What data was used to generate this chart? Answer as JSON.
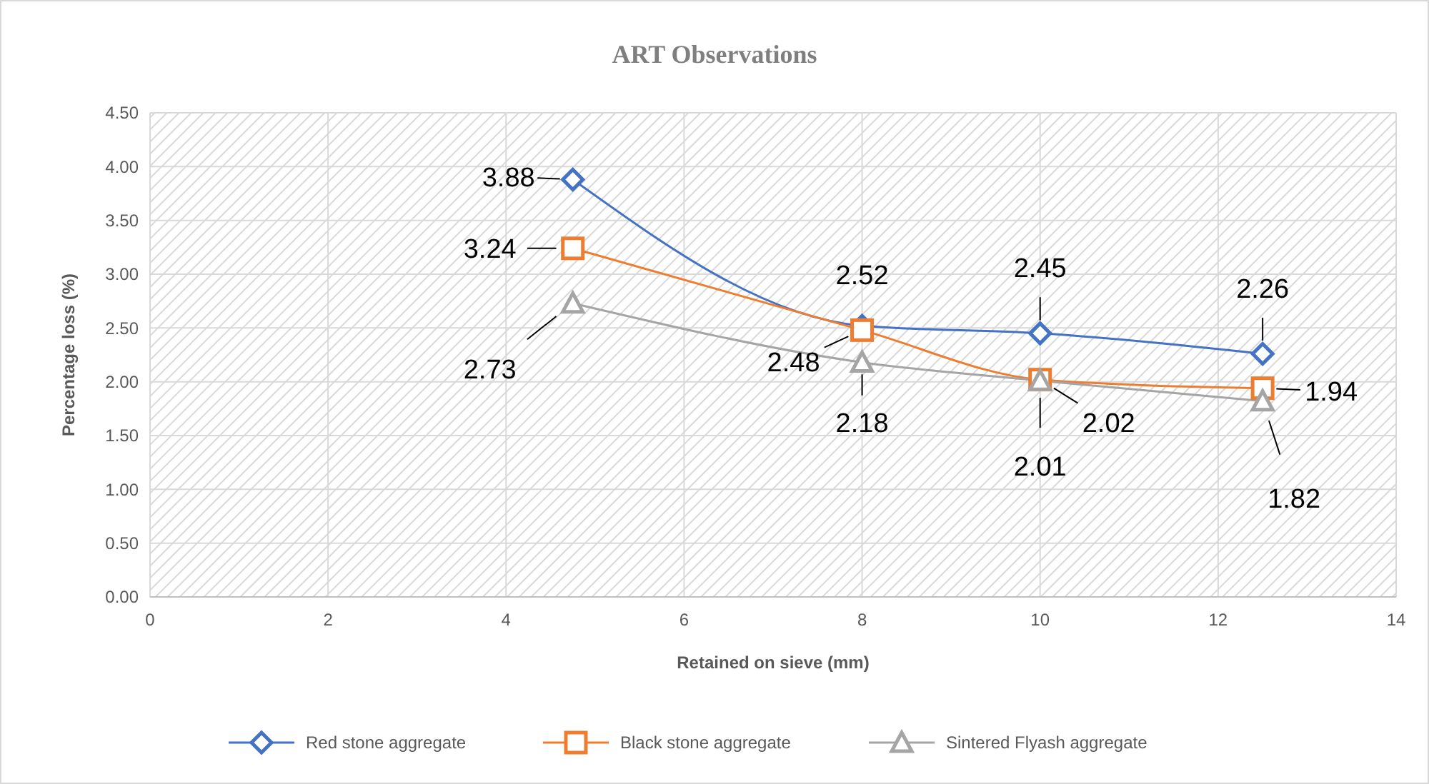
{
  "chart_data": {
    "type": "line",
    "title": "ART Observations",
    "xlabel": "Retained on sieve (mm)",
    "ylabel": "Percentage loss (%)",
    "x": [
      4.75,
      8,
      10,
      12.5
    ],
    "series": [
      {
        "name": "Red stone aggregate",
        "color": "#4472c4",
        "marker": "diamond",
        "values": [
          3.88,
          2.52,
          2.45,
          2.26
        ]
      },
      {
        "name": "Black stone aggregate",
        "color": "#ed7d31",
        "marker": "square",
        "values": [
          3.24,
          2.48,
          2.02,
          1.94
        ]
      },
      {
        "name": "Sintered Flyash aggregate",
        "color": "#a5a5a5",
        "marker": "triangle",
        "values": [
          2.73,
          2.18,
          2.01,
          1.82
        ]
      }
    ],
    "xlim": [
      0,
      14
    ],
    "xticks": [
      0,
      2,
      4,
      6,
      8,
      10,
      12,
      14
    ],
    "ylim": [
      0,
      4.5
    ],
    "yticks": [
      {
        "value": 0,
        "label": "0.00"
      },
      {
        "value": 0.5,
        "label": "0.50"
      },
      {
        "value": 1,
        "label": "1.00"
      },
      {
        "value": 1.5,
        "label": "1.50"
      },
      {
        "value": 2,
        "label": "2.00"
      },
      {
        "value": 2.5,
        "label": "2.50"
      },
      {
        "value": 3,
        "label": "3.00"
      },
      {
        "value": 3.5,
        "label": "3.50"
      },
      {
        "value": 4,
        "label": "4.00"
      },
      {
        "value": 4.5,
        "label": "4.50"
      }
    ],
    "grid": true,
    "legend": "bottom",
    "data_labels": true
  }
}
